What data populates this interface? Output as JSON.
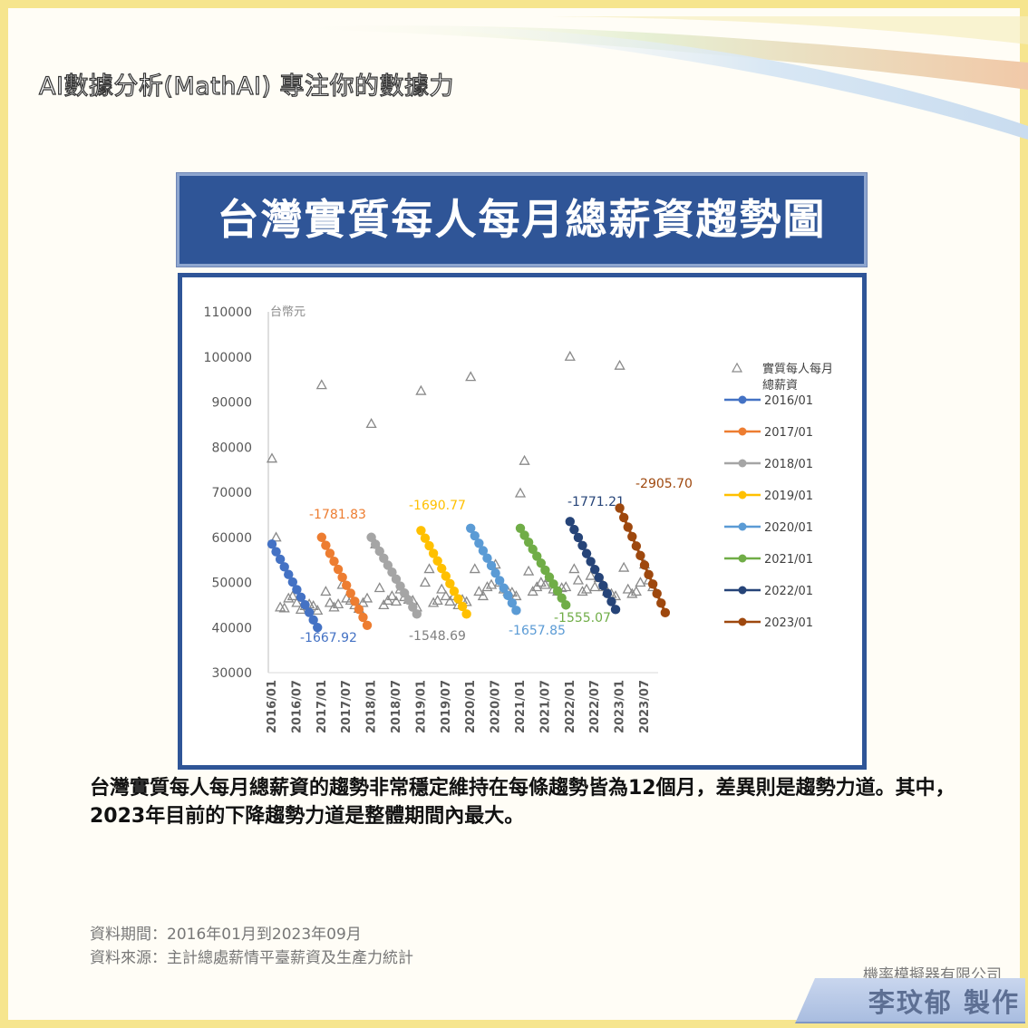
{
  "header": {
    "site_title": "AI數據分析(MathAI) 專注你的數據力"
  },
  "chart_title": "台灣實質每人每月總薪資趨勢圖",
  "summary": "台灣實質每人每月總薪資的趨勢非常穩定維持在每條趨勢皆為12個月，差異則是趨勢力道。其中，2023年目前的下降趨勢力道是整體期間內最大。",
  "footer": {
    "data_period": "資料期間：2016年01月到2023年09月",
    "data_source": "資料來源：主計總處薪情平臺薪資及生產力統計",
    "company": "機率模擬器有限公司",
    "author": "李玟郁 製作"
  },
  "colors": {
    "frame": "#f6e58e",
    "banner": "#2f5597",
    "scatter": "#8a8a8a"
  },
  "chart_data": {
    "type": "scatter",
    "unit_label": "台幣元",
    "ylim": [
      30000,
      110000
    ],
    "yticks": [
      "110000",
      "100000",
      "90000",
      "80000",
      "70000",
      "60000",
      "50000",
      "40000",
      "30000"
    ],
    "xlabels": [
      "2016/01",
      "2016/07",
      "2017/01",
      "2017/07",
      "2018/01",
      "2018/07",
      "2019/01",
      "2019/07",
      "2020/01",
      "2020/07",
      "2021/01",
      "2021/07",
      "2022/01",
      "2022/07",
      "2023/01",
      "2023/07"
    ],
    "scatter_series": {
      "name": "實質每人每月總薪資",
      "name_lines": [
        "實質每人每月",
        "總薪資"
      ],
      "color": "#8a8a8a",
      "values": [
        77500,
        60000,
        44500,
        44300,
        46500,
        47000,
        45500,
        44000,
        44800,
        45200,
        44800,
        43800,
        93800,
        48000,
        45500,
        44500,
        45200,
        49500,
        46500,
        46000,
        45000,
        44200,
        45500,
        46500,
        85200,
        58500,
        48800,
        45000,
        46000,
        47000,
        45800,
        48500,
        46800,
        46200,
        46000,
        44500,
        92500,
        50000,
        53000,
        45500,
        46000,
        48500,
        47000,
        45800,
        47000,
        45000,
        46200,
        45700,
        95600,
        53000,
        48000,
        47000,
        49000,
        49500,
        54000,
        50000,
        48500,
        48000,
        47800,
        47000,
        69800,
        77000,
        52500,
        48000,
        49000,
        50000,
        49500,
        51000,
        48500,
        48000,
        48800,
        49000,
        100100,
        53000,
        50500,
        48000,
        48500,
        51500,
        49000,
        51000,
        49000,
        48000,
        47500,
        47000,
        98100,
        53300,
        48500,
        47500,
        48000,
        50000,
        54000,
        50500,
        49000
      ]
    },
    "series": [
      {
        "name": "2016/01",
        "color": "#4472c4",
        "start_index": 0,
        "start": 58500,
        "end": 40000
      },
      {
        "name": "2017/01",
        "color": "#ed7d31",
        "start_index": 12,
        "start": 60000,
        "end": 40500
      },
      {
        "name": "2018/01",
        "color": "#a5a5a5",
        "start_index": 24,
        "start": 60000,
        "end": 43000
      },
      {
        "name": "2019/01",
        "color": "#ffc000",
        "start_index": 36,
        "start": 61500,
        "end": 43000
      },
      {
        "name": "2020/01",
        "color": "#5b9bd5",
        "start_index": 48,
        "start": 62000,
        "end": 43800
      },
      {
        "name": "2021/01",
        "color": "#70ad47",
        "start_index": 60,
        "start": 62000,
        "end": 45000
      },
      {
        "name": "2022/01",
        "color": "#264478",
        "start_index": 72,
        "start": 63500,
        "end": 44000
      },
      {
        "name": "2023/01",
        "color": "#9e480e",
        "start_index": 84,
        "start": 66500,
        "end": 43300
      }
    ],
    "annotations": [
      {
        "text": "-1667.92",
        "color": "#4472c4"
      },
      {
        "text": "-1781.83",
        "color": "#ed7d31"
      },
      {
        "text": "-1548.69",
        "color": "#7f7f7f"
      },
      {
        "text": "-1690.77",
        "color": "#ffc000"
      },
      {
        "text": "-1657.85",
        "color": "#5b9bd5"
      },
      {
        "text": "-1555.07",
        "color": "#70ad47"
      },
      {
        "text": "-1771.21",
        "color": "#264478"
      },
      {
        "text": "-2905.70",
        "color": "#9e480e"
      }
    ],
    "legend_position": "right"
  }
}
